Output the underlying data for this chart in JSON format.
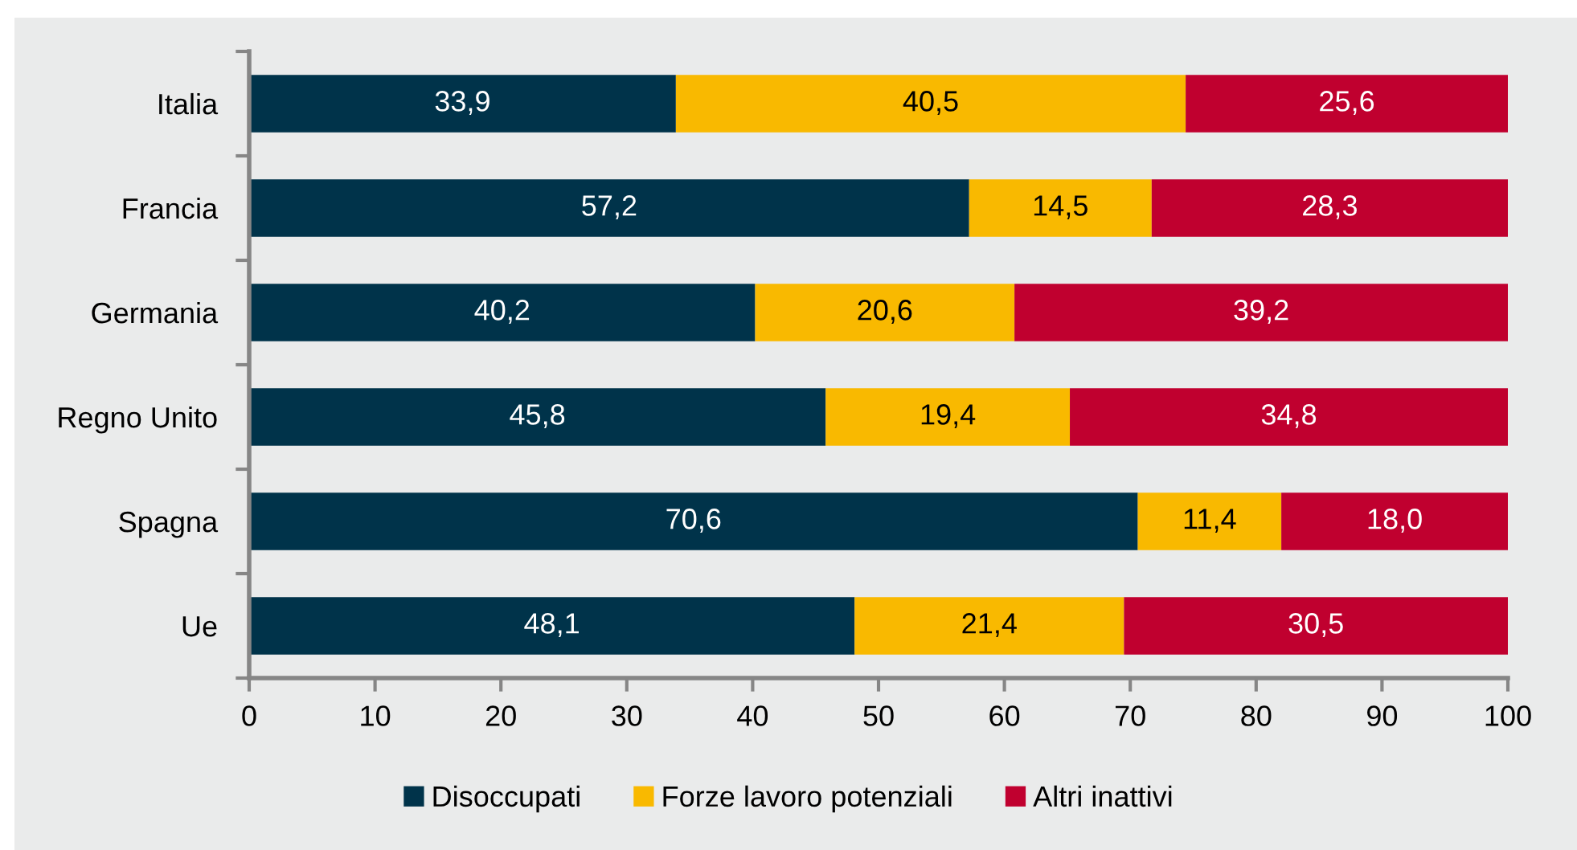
{
  "chart_data": {
    "type": "bar",
    "orientation": "horizontal",
    "stacked": true,
    "categories": [
      "Italia",
      "Francia",
      "Germania",
      "Regno Unito",
      "Spagna",
      "Ue"
    ],
    "series": [
      {
        "name": "Disoccupati",
        "color": "#00334a",
        "values": [
          33.9,
          57.2,
          40.2,
          45.8,
          70.6,
          48.1
        ],
        "value_labels": [
          "33,9",
          "57,2",
          "40,2",
          "45,8",
          "70,6",
          "48,1"
        ]
      },
      {
        "name": "Forze lavoro potenziali",
        "color": "#f9b900",
        "values": [
          40.5,
          14.5,
          20.6,
          19.4,
          11.4,
          21.4
        ],
        "value_labels": [
          "40,5",
          "14,5",
          "20,6",
          "19,4",
          "11,4",
          "21,4"
        ]
      },
      {
        "name": "Altri inattivi",
        "color": "#c0002f",
        "values": [
          25.6,
          28.3,
          39.2,
          34.8,
          18.0,
          30.5
        ],
        "value_labels": [
          "25,6",
          "28,3",
          "39,2",
          "34,8",
          "18,0",
          "30,5"
        ]
      }
    ],
    "xlim": [
      0,
      100
    ],
    "xticks": [
      0,
      10,
      20,
      30,
      40,
      50,
      60,
      70,
      80,
      90,
      100
    ],
    "grid": false,
    "legend": "bottom"
  }
}
